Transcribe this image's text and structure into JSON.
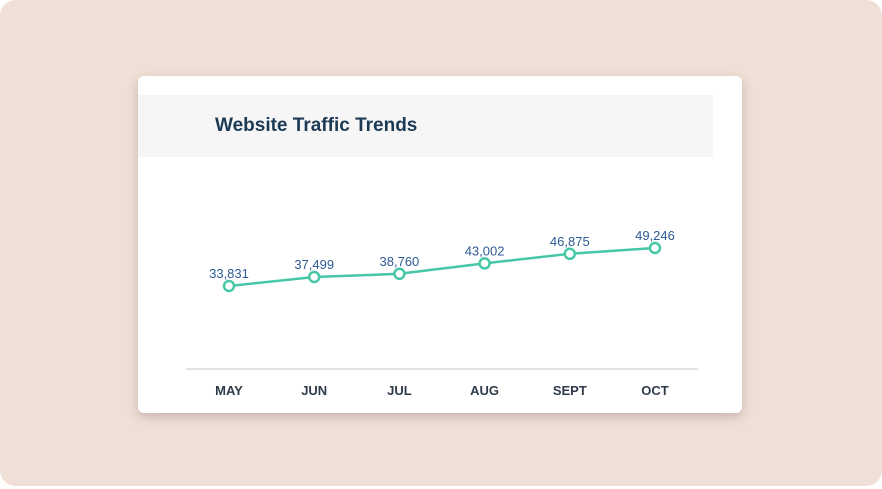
{
  "chart_data": {
    "type": "line",
    "title": "Website Traffic Trends",
    "categories": [
      "MAY",
      "JUN",
      "JUL",
      "AUG",
      "SEPT",
      "OCT"
    ],
    "values": [
      33831,
      37499,
      38760,
      43002,
      46875,
      49246
    ],
    "data_labels": [
      "33,831",
      "37,499",
      "38,760",
      "43,002",
      "46,875",
      "49,246"
    ],
    "xlabel": "",
    "ylabel": "",
    "grid": false,
    "legend": "none",
    "colors": {
      "line": "#46c8a8",
      "data_label": "#2e5a94",
      "title": "#1d3a55",
      "background": "#f0dfd6"
    }
  }
}
